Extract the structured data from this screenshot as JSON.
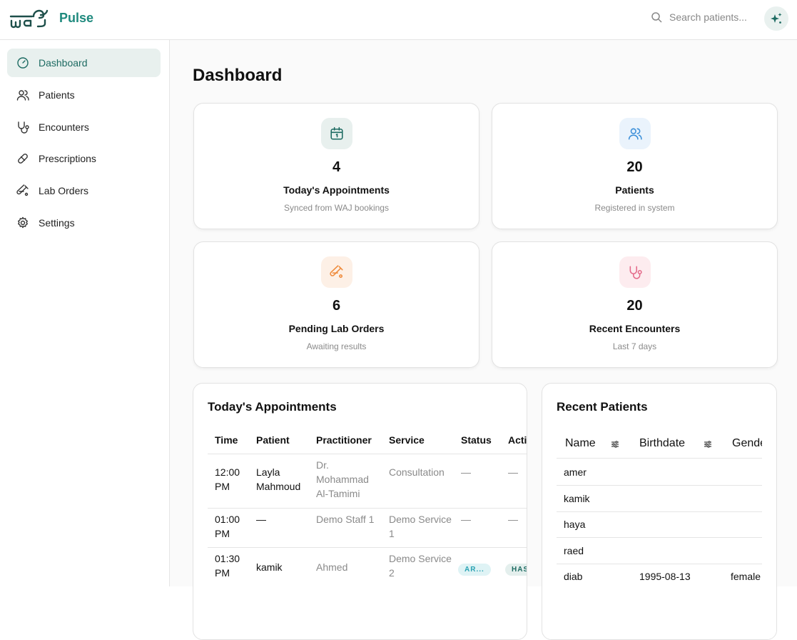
{
  "header": {
    "brand": "Pulse",
    "logo_text": "WAJ",
    "search_placeholder": "Search patients...",
    "ai_icon": "sparkles-icon"
  },
  "sidebar": {
    "items": [
      {
        "label": "Dashboard",
        "icon": "gauge-icon",
        "active": true
      },
      {
        "label": "Patients",
        "icon": "users-icon"
      },
      {
        "label": "Encounters",
        "icon": "stethoscope-icon"
      },
      {
        "label": "Prescriptions",
        "icon": "pill-icon"
      },
      {
        "label": "Lab Orders",
        "icon": "test-tube-icon"
      },
      {
        "label": "Settings",
        "icon": "gear-icon"
      }
    ]
  },
  "page_title": "Dashboard",
  "cards": [
    {
      "value": "4",
      "label": "Today's Appointments",
      "sub": "Synced from WAJ bookings",
      "icon": "calendar-icon",
      "color": "#1d6b62",
      "bg": "#e8f0ee"
    },
    {
      "value": "20",
      "label": "Patients",
      "sub": "Registered in system",
      "icon": "users-icon",
      "color": "#3b8fd9",
      "bg": "#eaf3fc"
    },
    {
      "value": "6",
      "label": "Pending Lab Orders",
      "sub": "Awaiting results",
      "icon": "test-tube-icon",
      "color": "#ef8a3a",
      "bg": "#fdf0e6"
    },
    {
      "value": "20",
      "label": "Recent Encounters",
      "sub": "Last 7 days",
      "icon": "stethoscope-icon",
      "color": "#e46a8a",
      "bg": "#fdecef"
    }
  ],
  "appointments": {
    "title": "Today's Appointments",
    "columns": [
      "Time",
      "Patient",
      "Practitioner",
      "Service",
      "Status",
      "Actions"
    ],
    "rows": [
      {
        "time": "12:00 PM",
        "patient": "Layla Mahmoud",
        "practitioner": "Dr. Mohammad Al-Tamimi",
        "service": "Consultation",
        "status": "—",
        "actions": "—"
      },
      {
        "time": "01:00 PM",
        "patient": "—",
        "practitioner": "Demo Staff 1",
        "service": "Demo Service 1",
        "status": "—",
        "actions": "—"
      },
      {
        "time": "01:30 PM",
        "patient": "kamik",
        "practitioner": "Ahmed",
        "service": "Demo Service 2",
        "status": "AR...",
        "actions": "HAS"
      }
    ]
  },
  "recent_patients": {
    "title": "Recent Patients",
    "columns": [
      "Name",
      "Birthdate",
      "Gender"
    ],
    "rows": [
      {
        "name": "amer",
        "birthdate": "",
        "gender": ""
      },
      {
        "name": "kamik",
        "birthdate": "",
        "gender": ""
      },
      {
        "name": "haya",
        "birthdate": "",
        "gender": ""
      },
      {
        "name": "raed",
        "birthdate": "",
        "gender": ""
      },
      {
        "name": "diab",
        "birthdate": "1995-08-13",
        "gender": "female"
      }
    ]
  }
}
